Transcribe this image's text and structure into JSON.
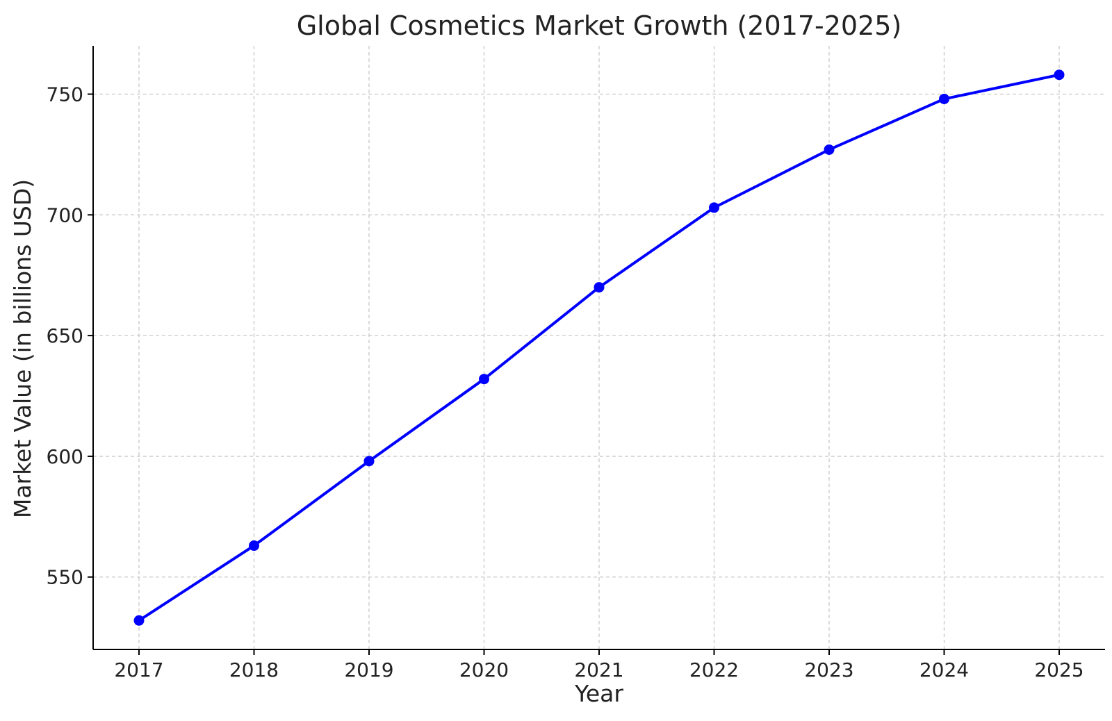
{
  "chart_data": {
    "type": "line",
    "title": "Global Cosmetics Market Growth (2017-2025)",
    "xlabel": "Year",
    "ylabel": "Market Value (in billions USD)",
    "x": [
      "2017",
      "2018",
      "2019",
      "2020",
      "2021",
      "2022",
      "2023",
      "2024",
      "2025"
    ],
    "series": [
      {
        "values": [
          532,
          563,
          598,
          632,
          670,
          703,
          727,
          748,
          758
        ],
        "color": "#0000ff",
        "marker": "circle"
      }
    ],
    "yticks": [
      550,
      600,
      650,
      700,
      750
    ],
    "ylim": [
      520,
      770
    ],
    "grid": true
  }
}
